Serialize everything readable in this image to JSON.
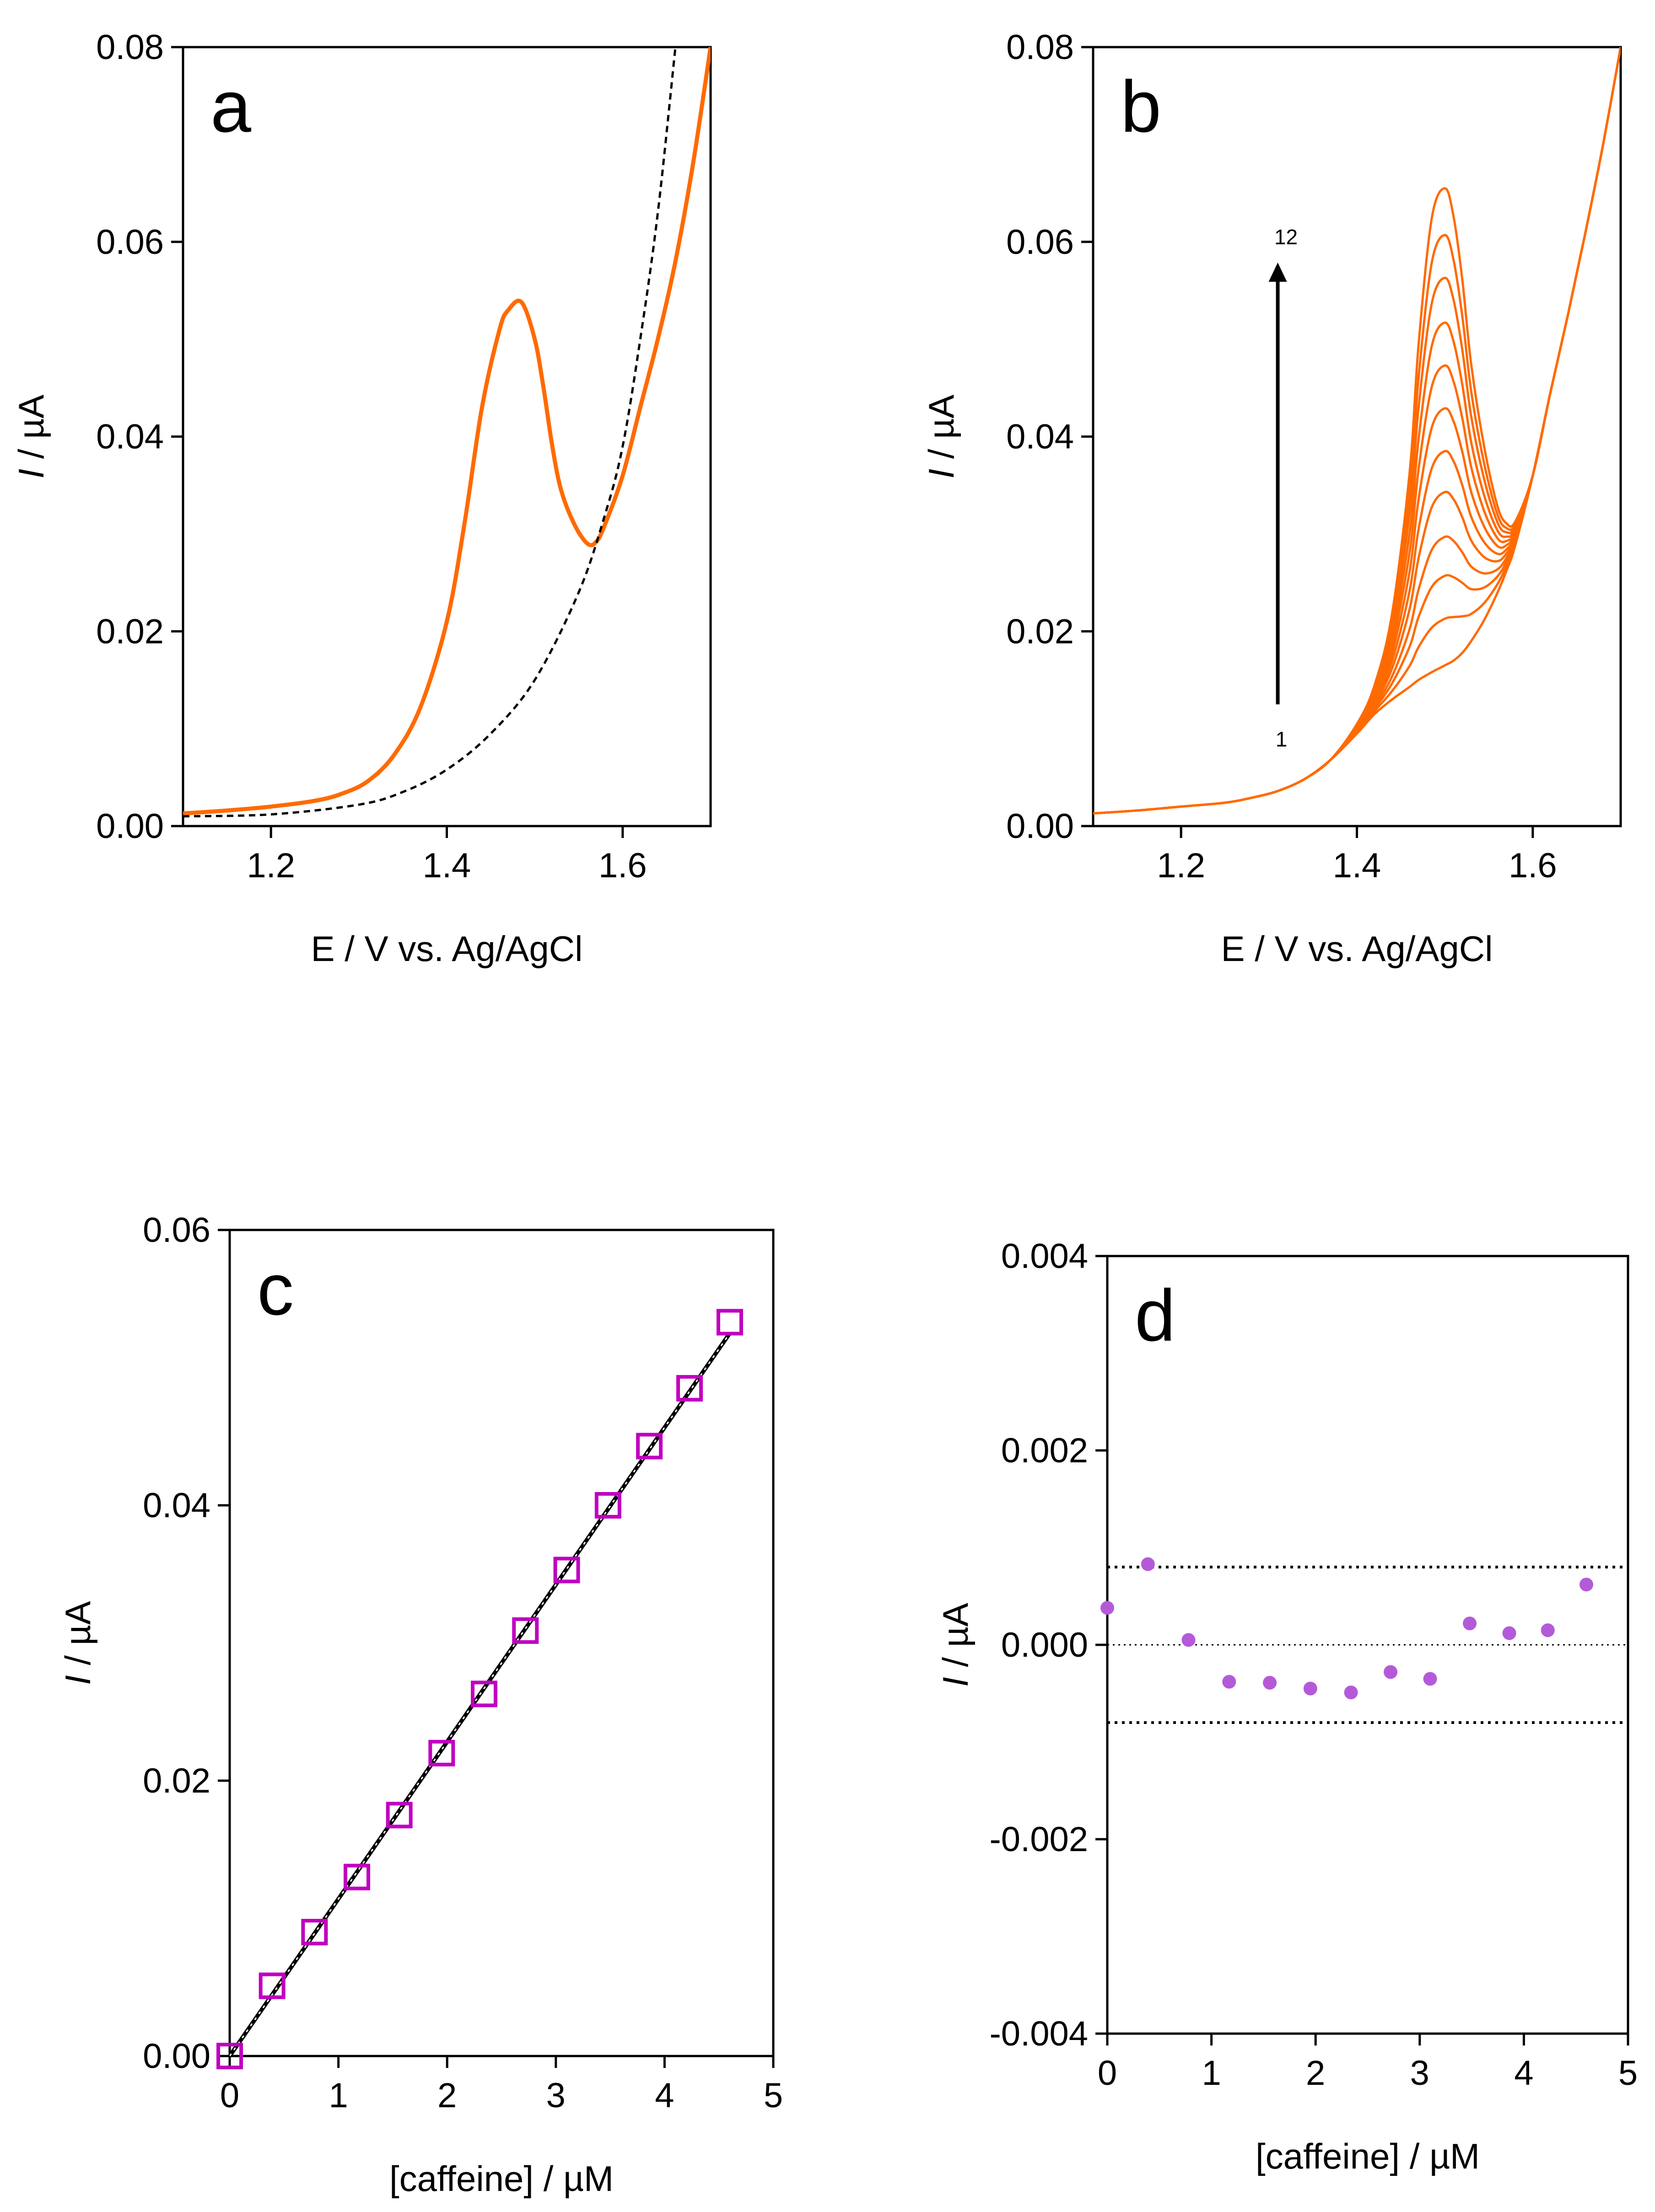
{
  "figure": {
    "colors": {
      "orange": "#FF6A00",
      "magenta": "#C000C0",
      "purple_points": "#B45AD9",
      "black": "#000000"
    }
  },
  "chart_data": [
    {
      "panel": "a",
      "type": "line",
      "letter": "a",
      "xlabel": "E / V vs. Ag/AgCl",
      "ylabel_italic": "I",
      "ylabel_rest": " / µA",
      "xlim": [
        1.1,
        1.7
      ],
      "ylim": [
        0.0,
        0.08
      ],
      "xticks": [
        1.2,
        1.4,
        1.6
      ],
      "xtick_labels": [
        "1.2",
        "1.4",
        "1.6"
      ],
      "yticks": [
        0.0,
        0.02,
        0.04,
        0.06,
        0.08
      ],
      "ytick_labels": [
        "0.00",
        "0.02",
        "0.04",
        "0.06",
        "0.08"
      ],
      "series": [
        {
          "style": "solid-orange",
          "x": [
            1.1,
            1.15,
            1.2,
            1.25,
            1.28,
            1.31,
            1.34,
            1.37,
            1.4,
            1.42,
            1.44,
            1.46,
            1.47,
            1.485,
            1.5,
            1.51,
            1.52,
            1.53,
            1.545,
            1.56,
            1.57,
            1.58,
            1.6,
            1.62,
            1.64,
            1.66,
            1.68,
            1.7
          ],
          "y": [
            0.0013,
            0.0016,
            0.002,
            0.0026,
            0.0033,
            0.0046,
            0.0073,
            0.0122,
            0.021,
            0.031,
            0.043,
            0.051,
            0.053,
            0.0538,
            0.05,
            0.045,
            0.039,
            0.0345,
            0.031,
            0.029,
            0.0292,
            0.031,
            0.036,
            0.043,
            0.05,
            0.058,
            0.068,
            0.08
          ]
        },
        {
          "style": "dashed-black",
          "x": [
            1.1,
            1.2,
            1.3,
            1.35,
            1.4,
            1.45,
            1.5,
            1.55,
            1.58,
            1.6,
            1.62,
            1.64,
            1.66
          ],
          "y": [
            0.001,
            0.0012,
            0.0022,
            0.0035,
            0.0058,
            0.0095,
            0.015,
            0.024,
            0.032,
            0.039,
            0.05,
            0.063,
            0.08
          ]
        }
      ]
    },
    {
      "panel": "b",
      "type": "line",
      "letter": "b",
      "xlabel": "E / V vs. Ag/AgCl",
      "ylabel_italic": "I",
      "ylabel_rest": " / µA",
      "xlim": [
        1.1,
        1.7
      ],
      "ylim": [
        0.0,
        0.08
      ],
      "xticks": [
        1.2,
        1.4,
        1.6
      ],
      "xtick_labels": [
        "1.2",
        "1.4",
        "1.6"
      ],
      "yticks": [
        0.0,
        0.02,
        0.04,
        0.06,
        0.08
      ],
      "ytick_labels": [
        "0.00",
        "0.02",
        "0.04",
        "0.06",
        "0.08"
      ],
      "arrow": {
        "label_start": "1",
        "label_end": "12",
        "x": 1.31,
        "y_start": 0.0125,
        "y_end": 0.0575
      },
      "curve_peak_heights": [
        0.0,
        0.0048,
        0.0092,
        0.0132,
        0.0178,
        0.022,
        0.0264,
        0.0308,
        0.0352,
        0.0398,
        0.0442,
        0.049
      ],
      "x": [
        1.1,
        1.15,
        1.2,
        1.25,
        1.28,
        1.31,
        1.34,
        1.37,
        1.4,
        1.42,
        1.44,
        1.46,
        1.47,
        1.485,
        1.5,
        1.51,
        1.52,
        1.53,
        1.545,
        1.56,
        1.57,
        1.58,
        1.6,
        1.62,
        1.64,
        1.66,
        1.68,
        1.7
      ],
      "baseline_y": [
        0.0013,
        0.0016,
        0.002,
        0.0024,
        0.0029,
        0.0036,
        0.0048,
        0.0068,
        0.0095,
        0.0115,
        0.013,
        0.0143,
        0.015,
        0.0158,
        0.0165,
        0.017,
        0.0178,
        0.019,
        0.0212,
        0.024,
        0.0262,
        0.0288,
        0.036,
        0.0445,
        0.0525,
        0.061,
        0.07,
        0.08
      ],
      "peak_shape": [
        0.0,
        0.0,
        0.0,
        0.0,
        0.0,
        0.0,
        0.0,
        0.0,
        0.02,
        0.06,
        0.18,
        0.45,
        0.7,
        0.95,
        1.0,
        0.93,
        0.78,
        0.58,
        0.36,
        0.18,
        0.1,
        0.05,
        0.0,
        0.0,
        0.0,
        0.0,
        0.0,
        0.0
      ]
    },
    {
      "panel": "c",
      "type": "scatter",
      "letter": "c",
      "xlabel": "[caffeine] / µM",
      "ylabel_italic": "I",
      "ylabel_rest": " / µA",
      "xlim": [
        0,
        5
      ],
      "ylim": [
        0.0,
        0.06
      ],
      "xticks": [
        0,
        1,
        2,
        3,
        4,
        5
      ],
      "xtick_labels": [
        "0",
        "1",
        "2",
        "3",
        "4",
        "5"
      ],
      "yticks": [
        0.0,
        0.02,
        0.04,
        0.06
      ],
      "ytick_labels": [
        "0.00",
        "0.02",
        "0.04",
        "0.06"
      ],
      "points": {
        "x": [
          0,
          0.39,
          0.78,
          1.17,
          1.56,
          1.95,
          2.34,
          2.72,
          3.1,
          3.48,
          3.86,
          4.23,
          4.6
        ],
        "y": [
          0.0,
          0.0051,
          0.009,
          0.013,
          0.0175,
          0.022,
          0.0263,
          0.0309,
          0.0353,
          0.04,
          0.0443,
          0.0485,
          0.0533
        ]
      },
      "fit_line": {
        "x": [
          0,
          4.6
        ],
        "y": [
          0.0,
          0.0525
        ]
      }
    },
    {
      "panel": "d",
      "type": "scatter",
      "letter": "d",
      "xlabel": "[caffeine] / µM",
      "ylabel_italic": "I",
      "ylabel_rest": " / µA",
      "xlim": [
        0,
        5
      ],
      "ylim": [
        -0.004,
        0.004
      ],
      "xticks": [
        0,
        1,
        2,
        3,
        4,
        5
      ],
      "xtick_labels": [
        "0",
        "1",
        "2",
        "3",
        "4",
        "5"
      ],
      "yticks": [
        -0.004,
        -0.002,
        0.0,
        0.002,
        0.004
      ],
      "ytick_labels": [
        "-0.004",
        "-0.002",
        "0.000",
        "0.002",
        "0.004"
      ],
      "points": {
        "x": [
          0,
          0.39,
          0.78,
          1.17,
          1.56,
          1.95,
          2.34,
          2.72,
          3.1,
          3.48,
          3.86,
          4.23,
          4.6
        ],
        "y": [
          0.00038,
          0.00083,
          5e-05,
          -0.00038,
          -0.00039,
          -0.00045,
          -0.00049,
          -0.00028,
          -0.00035,
          0.00022,
          0.00012,
          0.00015,
          0.00062
        ]
      },
      "hlines": [
        {
          "y": 0.0008,
          "style": "dotted-thick"
        },
        {
          "y": 0.0,
          "style": "dotted-thin"
        },
        {
          "y": -0.0008,
          "style": "dotted-thick"
        }
      ]
    }
  ]
}
